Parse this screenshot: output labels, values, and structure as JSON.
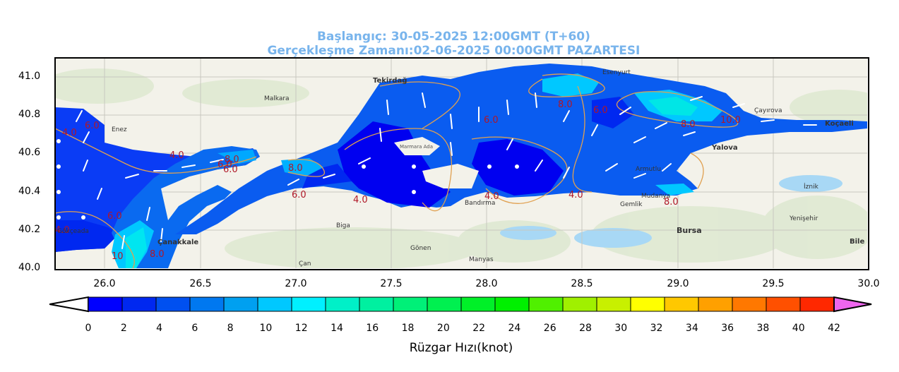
{
  "header": {
    "start_label": "Başlangıç: 30-05-2025 12:00GMT (T+60)",
    "valid_label": "Gerçekleşme Zamanı:02-06-2025 00:00GMT PAZARTESI"
  },
  "map": {
    "lon_ticks": [
      "26.0",
      "26.5",
      "27.0",
      "27.5",
      "28.0",
      "28.5",
      "29.0",
      "29.5",
      "30.0"
    ],
    "lat_ticks": [
      "41.0",
      "40.8",
      "40.6",
      "40.4",
      "40.2",
      "40.0"
    ],
    "lon_range": [
      25.75,
      30.0
    ],
    "lat_range": [
      40.0,
      41.1
    ],
    "place_names": [
      "Tekirdağ",
      "Esenyurt",
      "Koçaeli",
      "Yalova",
      "Bursa",
      "Çanakkale",
      "Bandırma",
      "Biga",
      "Gönen",
      "Manyas",
      "Gökçeada",
      "Malkara",
      "Gemlik",
      "Mudanya",
      "İznik",
      "Yenişehir",
      "Bile",
      "Çayırova",
      "Marmara Ada",
      "Enez",
      "Çan",
      "Armutlu"
    ],
    "contour_labels": [
      "4.0",
      "6.0",
      "6.0",
      "4.0",
      "6.0",
      "8.0",
      "8.0",
      "6.0",
      "4.0",
      "6.0",
      "4.0",
      "4.0",
      "8.0",
      "6.0",
      "10.0",
      "8.0",
      "8.0",
      "4.0",
      "8.0",
      "6.0",
      "10",
      "8.0",
      "6.0",
      "4.0"
    ],
    "colors": {
      "low": "#0000f0",
      "mid": "#0a55f0",
      "high": "#00ccff",
      "vhigh": "#00f0e0",
      "contour": "#e0a050",
      "land": "#f3f2ea"
    }
  },
  "colorbar": {
    "title": "Rüzgar Hızı(knot)",
    "ticks": [
      "0",
      "2",
      "4",
      "6",
      "8",
      "10",
      "12",
      "14",
      "16",
      "18",
      "20",
      "22",
      "24",
      "26",
      "28",
      "30",
      "32",
      "34",
      "36",
      "38",
      "40",
      "42"
    ],
    "colors": [
      "#0000ff",
      "#0028f0",
      "#0050f0",
      "#0078f0",
      "#00a0f0",
      "#00c8ff",
      "#00f0ff",
      "#00f0c8",
      "#00f0a0",
      "#00f078",
      "#00f050",
      "#00f028",
      "#00f000",
      "#50f000",
      "#a0f000",
      "#c8f000",
      "#ffff00",
      "#ffc800",
      "#ffa000",
      "#ff7800",
      "#ff5000",
      "#ff2800",
      "#ff0000"
    ]
  }
}
